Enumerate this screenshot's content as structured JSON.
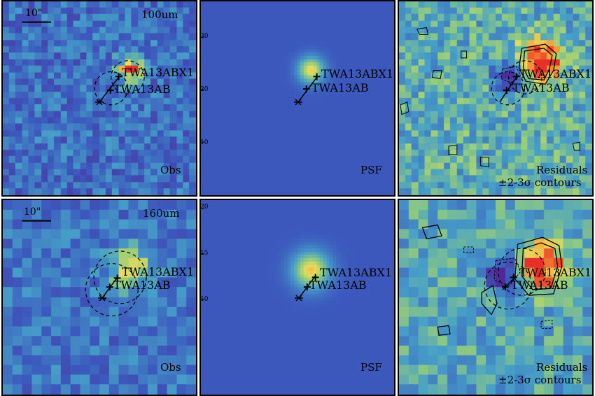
{
  "panels": [
    {
      "row": 0,
      "col": 0,
      "kind": "obs",
      "band": "100um",
      "corner": "Obs",
      "scale": "10\""
    },
    {
      "row": 0,
      "col": 1,
      "kind": "psf",
      "corner": "PSF"
    },
    {
      "row": 0,
      "col": 2,
      "kind": "res",
      "corner_line1": "Residuals",
      "corner_line2": "±2-3σ contours"
    },
    {
      "row": 1,
      "col": 0,
      "kind": "obs",
      "band": "160um",
      "corner": "Obs",
      "scale": "10\""
    },
    {
      "row": 1,
      "col": 1,
      "kind": "psf",
      "corner": "PSF"
    },
    {
      "row": 1,
      "col": 2,
      "kind": "res",
      "corner_line1": "Residuals",
      "corner_line2": "±2-3σ contours"
    }
  ],
  "sources": {
    "primary": "TWA13ABX1",
    "secondary": "TWA13AB"
  },
  "axis_ticks": {
    "top_psf": [
      "30",
      "20",
      "10"
    ],
    "bottom_psf": [
      "20",
      "15",
      "10"
    ]
  },
  "colors": {
    "frame": "#000000",
    "background": "#ffffff",
    "psf_bg": "#3d6fbf",
    "peak": "#e8312a"
  }
}
